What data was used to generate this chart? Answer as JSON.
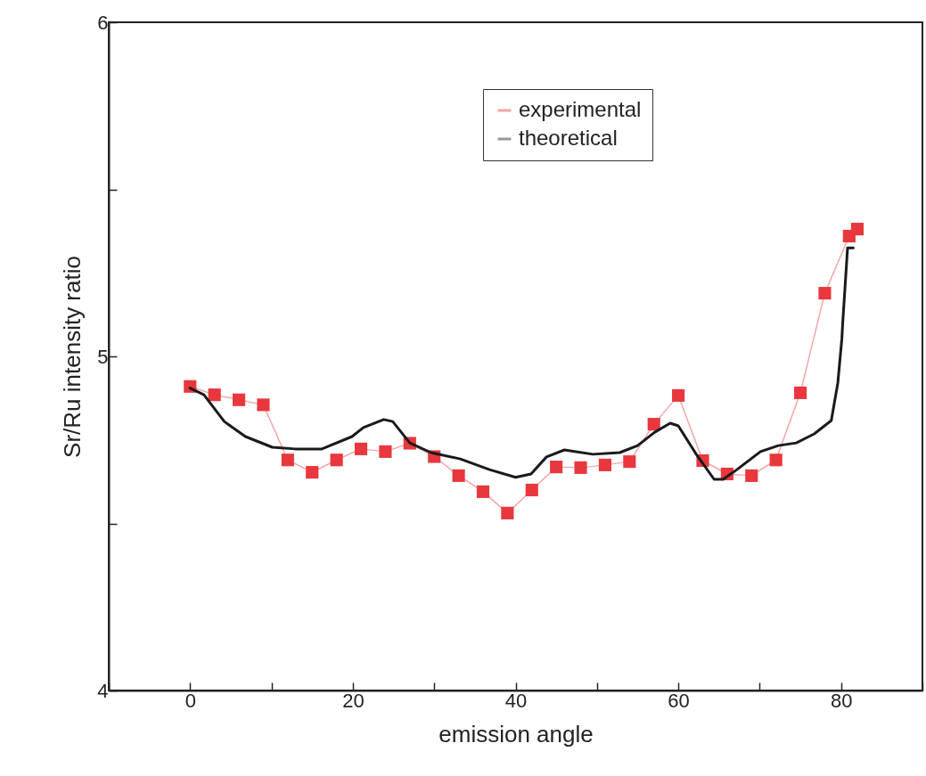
{
  "chart_data": {
    "type": "line",
    "xlabel": "emission angle",
    "ylabel": "Sr/Ru intensity ratio",
    "xlim": [
      -10,
      90
    ],
    "xticks": [
      {
        "value": -10,
        "label": null
      },
      0,
      {
        "value": 10,
        "label": null
      },
      20,
      {
        "value": 30,
        "label": null
      },
      40,
      {
        "value": 50,
        "label": null
      },
      60,
      {
        "value": 70,
        "label": null
      },
      80,
      {
        "value": 90,
        "label": null
      }
    ],
    "ylim": [
      4,
      6
    ],
    "yticks": [
      4,
      {
        "value": 4.5,
        "label": null
      },
      5,
      {
        "value": 5.5,
        "label": null
      },
      6
    ],
    "grid": false,
    "legend": "top right",
    "line_style": "solid",
    "series": [
      {
        "name": "experimental",
        "color": "#e8383d",
        "marker": "square",
        "x": [
          0,
          3,
          6,
          9,
          12,
          15,
          18,
          21,
          24,
          27,
          30,
          33,
          36,
          39,
          42,
          45,
          48,
          51,
          54,
          57,
          60,
          63,
          66,
          69,
          72,
          75,
          78,
          81,
          82
        ],
        "values": [
          4.91,
          4.885,
          4.87,
          4.855,
          4.69,
          4.653,
          4.69,
          4.723,
          4.715,
          4.74,
          4.7,
          4.643,
          4.595,
          4.531,
          4.6,
          4.669,
          4.667,
          4.675,
          4.685,
          4.797,
          4.883,
          4.688,
          4.648,
          4.643,
          4.69,
          4.891,
          5.189,
          5.36,
          5.381
        ]
      },
      {
        "name": "theoretical",
        "color": "#1a1a1a",
        "marker": "none",
        "x": [
          0,
          1.7,
          4.2,
          6.8,
          10.1,
          12.9,
          16.2,
          19.9,
          21.3,
          23.8,
          24.9,
          27,
          29.6,
          33.2,
          36.8,
          40,
          41.9,
          43.8,
          46,
          49.5,
          52.8,
          55,
          57.1,
          59,
          60,
          62.2,
          64.4,
          65.5,
          67.2,
          70.1,
          72.3,
          74.5,
          76.7,
          78.8,
          79.6,
          80.1,
          80.2,
          80.8,
          81.5
        ],
        "values": [
          4.905,
          4.885,
          4.805,
          4.76,
          4.728,
          4.723,
          4.723,
          4.76,
          4.787,
          4.811,
          4.805,
          4.741,
          4.712,
          4.693,
          4.661,
          4.638,
          4.648,
          4.699,
          4.72,
          4.707,
          4.712,
          4.733,
          4.773,
          4.8,
          4.792,
          4.707,
          4.632,
          4.632,
          4.661,
          4.715,
          4.733,
          4.741,
          4.768,
          4.808,
          4.92,
          5.053,
          5.099,
          5.325,
          5.325
        ]
      }
    ]
  }
}
